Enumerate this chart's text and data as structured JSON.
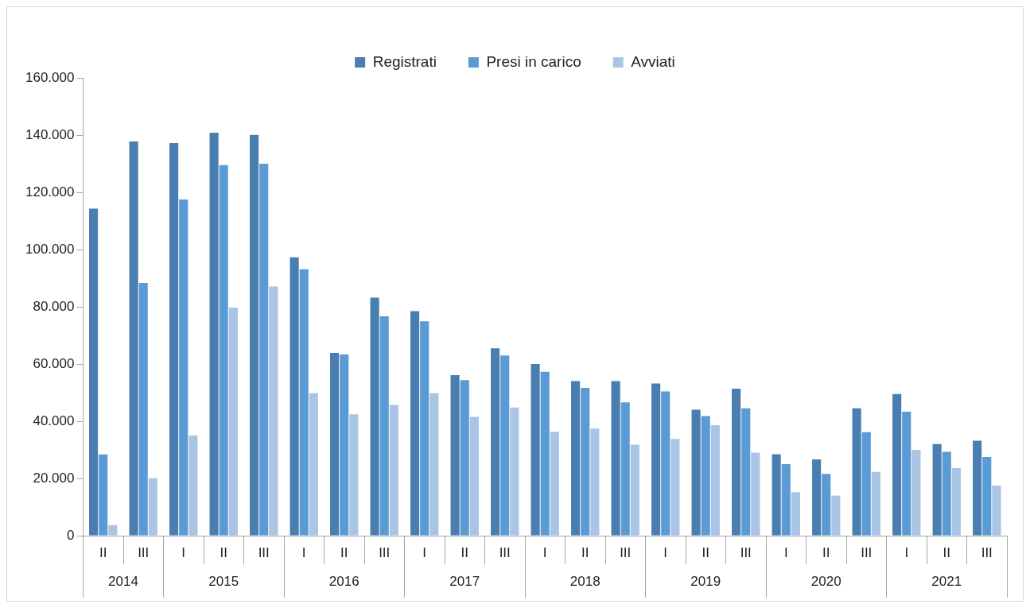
{
  "chart_data": {
    "type": "bar",
    "categories": [
      "II",
      "III",
      "I",
      "II",
      "III",
      "I",
      "II",
      "III",
      "I",
      "II",
      "III",
      "I",
      "II",
      "III",
      "I",
      "II",
      "III",
      "I",
      "II",
      "III",
      "I",
      "II",
      "III"
    ],
    "series": [
      {
        "name": "Registrati",
        "color": "#4a7eb0",
        "values": [
          114300,
          137800,
          137200,
          140800,
          140100,
          97300,
          63900,
          83200,
          78500,
          56100,
          65500,
          60000,
          54000,
          54000,
          53200,
          44000,
          51400,
          28500,
          26700,
          44500,
          49500,
          32000,
          33200
        ]
      },
      {
        "name": "Presi in carico",
        "color": "#5b9bd5",
        "values": [
          28400,
          88300,
          117500,
          129500,
          130000,
          93100,
          63300,
          76700,
          74900,
          54400,
          63000,
          57300,
          51700,
          46600,
          50400,
          41800,
          44500,
          25000,
          21600,
          36200,
          43300,
          29300,
          27500
        ]
      },
      {
        "name": "Avviati",
        "color": "#a9c4e4",
        "values": [
          3700,
          20100,
          35000,
          79700,
          87100,
          49800,
          42400,
          45700,
          49800,
          41500,
          44800,
          36300,
          37400,
          31800,
          33800,
          38600,
          29000,
          15200,
          14000,
          22300,
          30000,
          23600,
          17500
        ]
      }
    ],
    "ylim": [
      0,
      160000
    ],
    "yticks": [
      {
        "value": 0,
        "label": "0"
      },
      {
        "value": 20000,
        "label": "20.000"
      },
      {
        "value": 40000,
        "label": "40.000"
      },
      {
        "value": 60000,
        "label": "60.000"
      },
      {
        "value": 80000,
        "label": "80.000"
      },
      {
        "value": 100000,
        "label": "100.000"
      },
      {
        "value": 120000,
        "label": "120.000"
      },
      {
        "value": 140000,
        "label": "140.000"
      },
      {
        "value": 160000,
        "label": "160.000"
      }
    ],
    "annotations": [
      "2014",
      "2015",
      "2016",
      "2017",
      "2018",
      "2019",
      "2020",
      "2021"
    ],
    "legend": "top",
    "grid": false
  }
}
